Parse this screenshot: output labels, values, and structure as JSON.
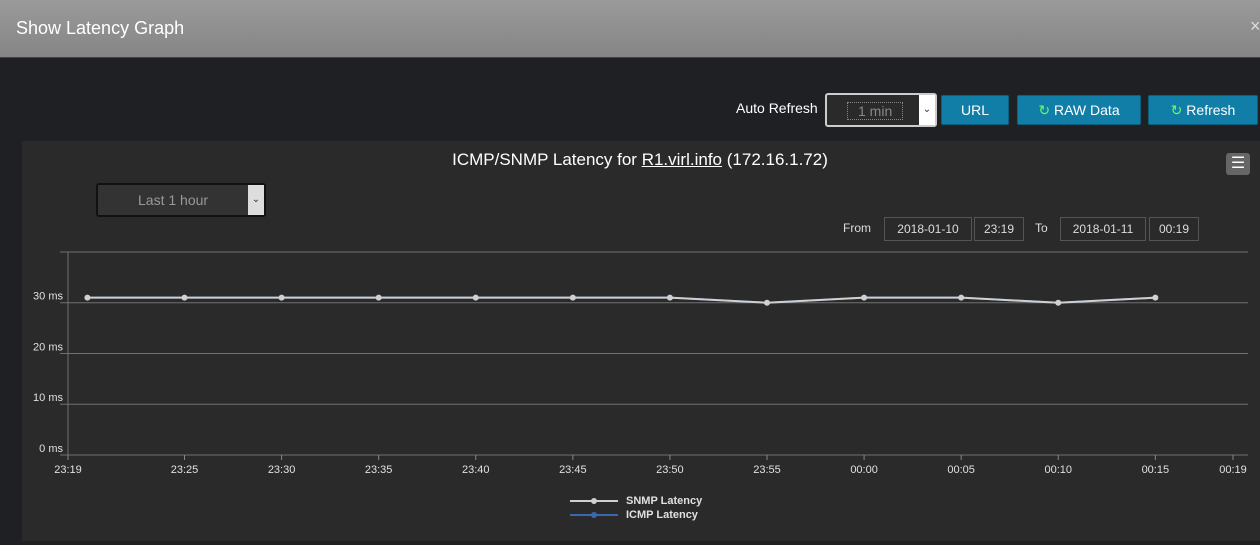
{
  "header": {
    "title": "Show Latency Graph",
    "close": "×"
  },
  "toolbar": {
    "auto_refresh_label": "Auto Refresh",
    "auto_refresh_value": "1 min",
    "url_button": "URL",
    "raw_button": "RAW Data",
    "refresh_button": "Refresh"
  },
  "range": {
    "selector": "Last 1 hour",
    "from_label": "From",
    "from_date": "2018-01-10",
    "from_time": "23:19",
    "to_label": "To",
    "to_date": "2018-01-11",
    "to_time": "00:19"
  },
  "chart_data": {
    "type": "line",
    "title": {
      "prefix": "ICMP/SNMP Latency for",
      "host": "R1.virl.info",
      "address": "(172.16.1.72)"
    },
    "x": [
      "23:20",
      "23:25",
      "23:30",
      "23:35",
      "23:40",
      "23:45",
      "23:50",
      "23:55",
      "00:00",
      "00:05",
      "00:10",
      "00:15"
    ],
    "xlim": [
      "23:19",
      "00:19"
    ],
    "xticks": [
      "23:19",
      "23:25",
      "23:30",
      "23:35",
      "23:40",
      "23:45",
      "23:50",
      "23:55",
      "00:00",
      "00:05",
      "00:10",
      "00:15",
      "00:19"
    ],
    "ylim": [
      0,
      40
    ],
    "yticks": [
      {
        "value": 0,
        "label": "0 ms"
      },
      {
        "value": 10,
        "label": "10 ms"
      },
      {
        "value": 20,
        "label": "20 ms"
      },
      {
        "value": 30,
        "label": "30 ms"
      }
    ],
    "grid": true,
    "series": [
      {
        "name": "SNMP Latency",
        "color": "#d0d0d0",
        "values": [
          31,
          31,
          31,
          31,
          31,
          31,
          31,
          30,
          31,
          31,
          30,
          31
        ]
      },
      {
        "name": "ICMP Latency",
        "color": "#3a68b0",
        "values": [
          31,
          31,
          31,
          31,
          31,
          31,
          31,
          30,
          31,
          31,
          30,
          31
        ]
      }
    ]
  }
}
